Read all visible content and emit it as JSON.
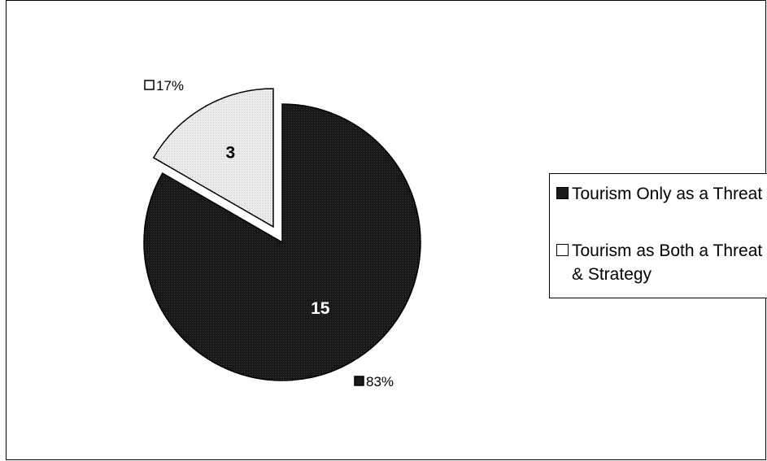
{
  "chart_data": {
    "type": "pie",
    "slices": [
      {
        "label": "Tourism Only as a Threat",
        "value": 15,
        "percent_label": "83%",
        "color": "#1a1a1a",
        "exploded": false
      },
      {
        "label": "Tourism as Both a Threat & Strategy",
        "value": 3,
        "percent_label": "17%",
        "color": "#ececec",
        "exploded": true
      }
    ],
    "legend_position": "right",
    "legend": [
      {
        "label": "Tourism Only as a Threat",
        "color": "#1a1a1a"
      },
      {
        "label": "Tourism as Both a Threat & Strategy",
        "color": "#ececec"
      }
    ]
  }
}
